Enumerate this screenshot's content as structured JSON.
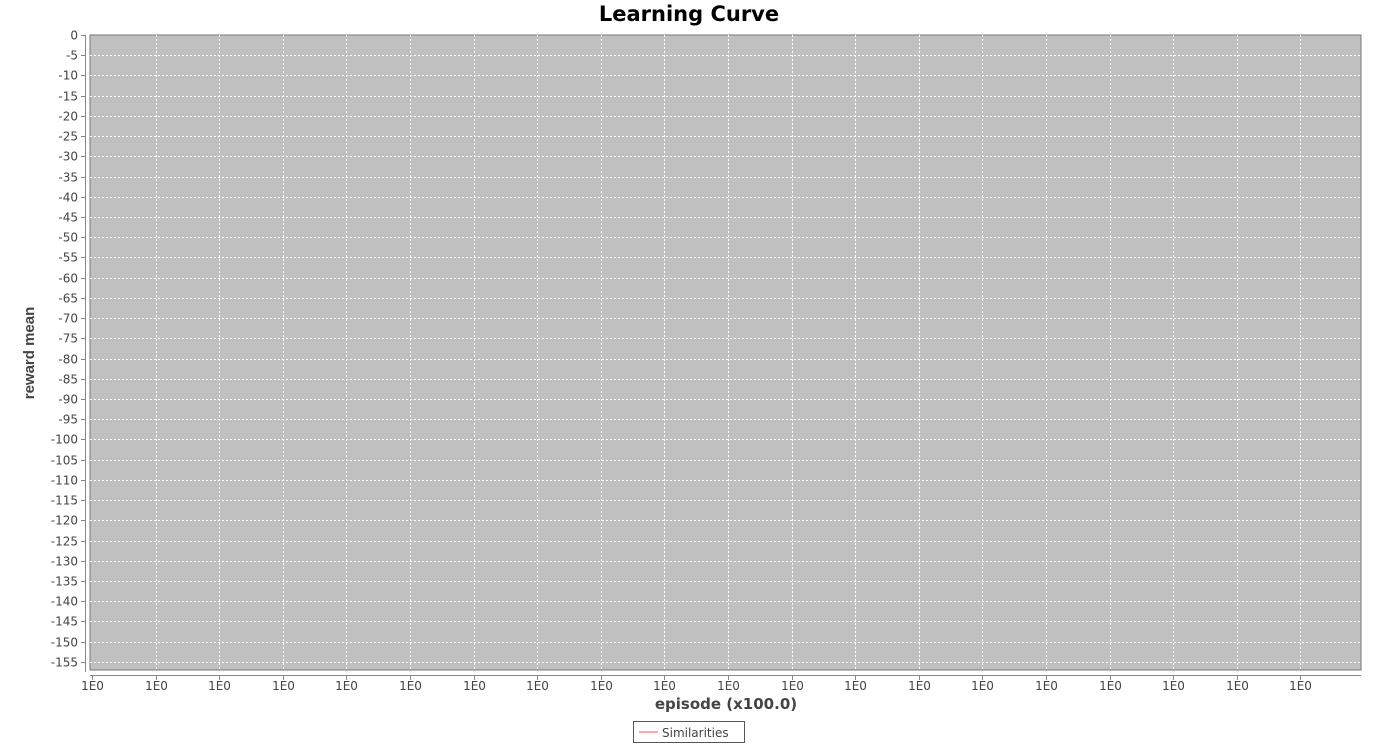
{
  "chart_data": {
    "type": "line",
    "title": "Learning Curve",
    "xlabel": "episode (x100.0)",
    "ylabel": "reward mean",
    "ylim": [
      -157,
      0
    ],
    "yticks": [
      0,
      -5,
      -10,
      -15,
      -20,
      -25,
      -30,
      -35,
      -40,
      -45,
      -50,
      -55,
      -60,
      -65,
      -70,
      -75,
      -80,
      -85,
      -90,
      -95,
      -100,
      -105,
      -110,
      -115,
      -120,
      -125,
      -130,
      -135,
      -140,
      -145,
      -150,
      -155
    ],
    "xticks": [
      "1E0",
      "1E0",
      "1E0",
      "1E0",
      "1E0",
      "1E0",
      "1E0",
      "1E0",
      "1E0",
      "1E0",
      "1E0",
      "1E0",
      "1E0",
      "1E0",
      "1E0",
      "1E0",
      "1E0",
      "1E0",
      "1E0",
      "1E0"
    ],
    "grid": true,
    "legend_position": "bottom-center",
    "plot_background": "#c0c0c0",
    "grid_color": "#ffffff",
    "series": [
      {
        "name": "Similarities",
        "color": "#ff5555",
        "x": [],
        "y": []
      }
    ]
  }
}
